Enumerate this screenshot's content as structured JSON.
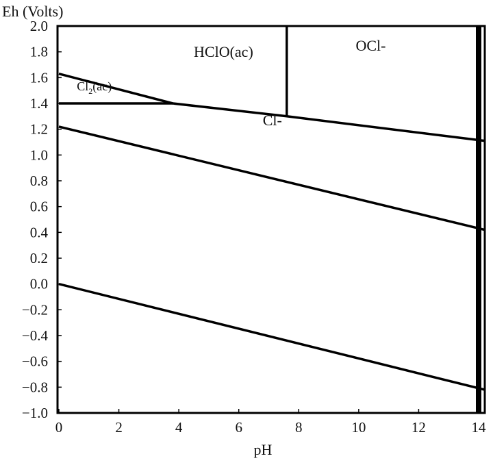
{
  "chart_data": {
    "type": "line",
    "ylabel": "Eh (Volts)",
    "xlabel": "pH",
    "xlim": [
      0,
      14
    ],
    "ylim": [
      -1.0,
      2.0
    ],
    "xticks": [
      0,
      2,
      4,
      6,
      8,
      10,
      12,
      14
    ],
    "yticks": [
      2.0,
      1.8,
      1.6,
      1.4,
      1.2,
      1.0,
      0.8,
      0.6,
      0.4,
      0.2,
      0.0,
      -0.2,
      -0.4,
      -0.6,
      -0.8,
      -1.0
    ],
    "ytick_labels": [
      "2.0",
      "1.8",
      "1.6",
      "1.4",
      "1.2",
      "1.0",
      "0.8",
      "0.6",
      "0.4",
      "0.2",
      "0.0",
      "−0.2",
      "−0.4",
      "−0.6",
      "−0.8",
      "−1.0"
    ],
    "boundaries": [
      {
        "name": "",
        "x": [
          0,
          3.8
        ],
        "y": [
          1.63,
          1.4
        ]
      },
      {
        "name": "",
        "x": [
          0,
          3.8
        ],
        "y": [
          1.4,
          1.4
        ]
      },
      {
        "name": "",
        "x": [
          3.8,
          7.6,
          14.2
        ],
        "y": [
          1.4,
          1.3,
          1.11
        ]
      },
      {
        "name": "",
        "x": [
          7.6,
          7.6
        ],
        "y": [
          1.3,
          2.0
        ]
      },
      {
        "name": "",
        "x": [
          0,
          14.2
        ],
        "y": [
          1.22,
          0.42
        ]
      },
      {
        "name": "",
        "x": [
          0,
          14.2
        ],
        "y": [
          0.0,
          -0.82
        ]
      }
    ],
    "regions": [
      {
        "label": "HClO(ac)",
        "x": 4.5,
        "y": 1.76
      },
      {
        "label": "OCl-",
        "x": 9.9,
        "y": 1.81
      },
      {
        "label": "Cl",
        "sub": "2",
        "suffix": "(ac)",
        "x": 0.6,
        "y": 1.5
      },
      {
        "label": "Cl-",
        "x": 6.8,
        "y": 1.23
      }
    ]
  }
}
